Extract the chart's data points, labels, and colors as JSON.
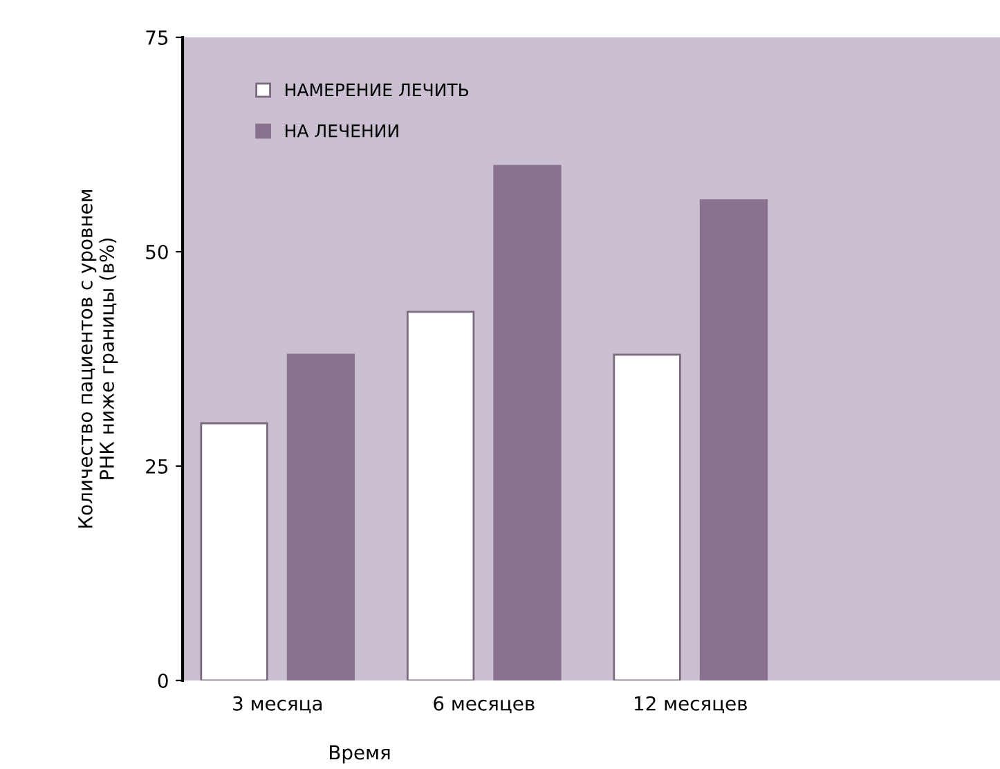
{
  "chart_data": {
    "type": "bar",
    "xlabel": "Время",
    "ylabel": "Количество пациентов с уровнем\nРНК ниже границы (в%)",
    "categories": [
      "3 месяца",
      "6 месяцев",
      "12 месяцев"
    ],
    "series": [
      {
        "name": "НАМЕРЕНИЕ ЛЕЧИТЬ",
        "color": "#ffffff",
        "values": [
          30,
          43,
          38
        ]
      },
      {
        "name": "НА ЛЕЧЕНИИ",
        "color": "#89718f",
        "values": [
          38,
          60,
          56
        ]
      }
    ],
    "ylim": [
      0,
      75
    ],
    "yticks": [
      0,
      25,
      50,
      75
    ],
    "grid": false,
    "legend": "top left"
  }
}
